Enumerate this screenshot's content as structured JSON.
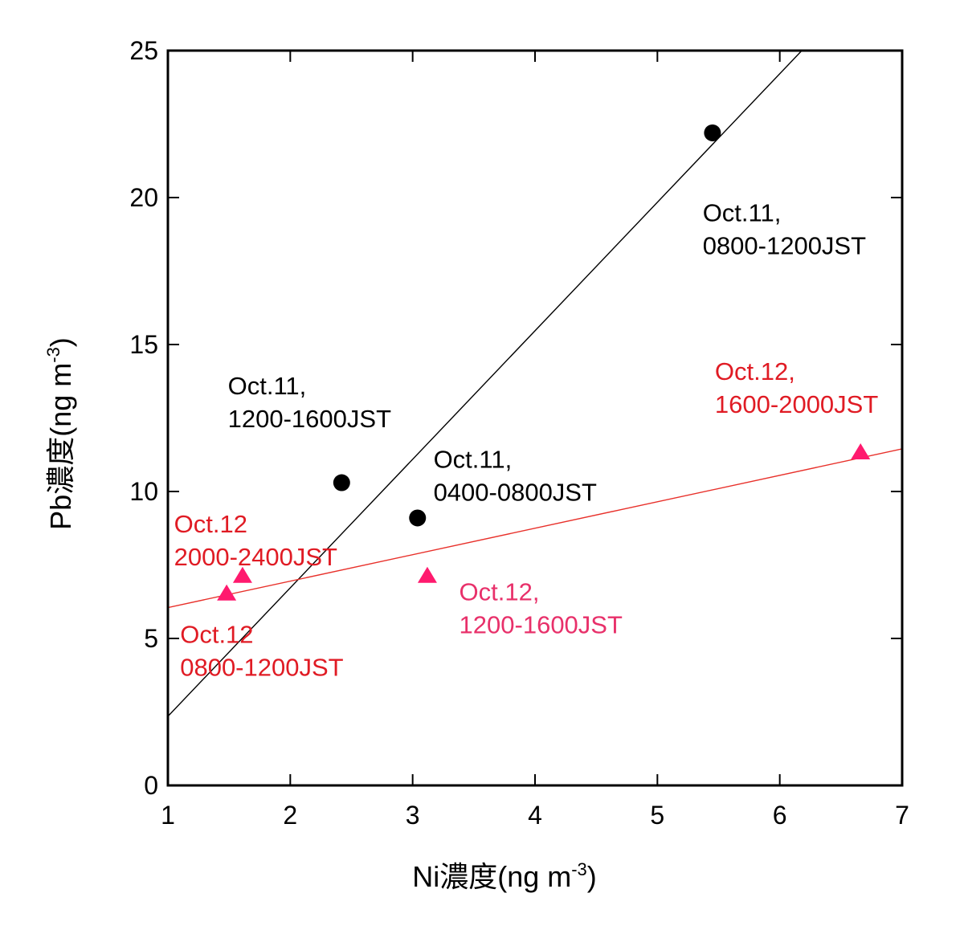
{
  "chart_data": {
    "type": "scatter",
    "title": "",
    "xlabel": "Ni濃度(ng m",
    "xlabel_sup": "-3",
    "xlabel_close": ")",
    "ylabel": "Pb濃度(ng m",
    "ylabel_sup": "-3",
    "ylabel_close": ")",
    "xlim": [
      1,
      7
    ],
    "ylim": [
      0,
      25
    ],
    "xticks": [
      "1",
      "2",
      "3",
      "4",
      "5",
      "6",
      "7"
    ],
    "yticks": [
      "0",
      "5",
      "10",
      "15",
      "20",
      "25"
    ],
    "grid": false,
    "series": [
      {
        "marker": "circle",
        "color": "#000000",
        "points": [
          {
            "x": 2.42,
            "y": 10.3
          },
          {
            "x": 3.04,
            "y": 9.1
          },
          {
            "x": 5.45,
            "y": 22.2
          }
        ],
        "fit_line": {
          "x": [
            1.0,
            6.18
          ],
          "y": [
            2.35,
            25.0
          ],
          "color": "#000000"
        }
      },
      {
        "marker": "triangle",
        "color": "#ff1a6e",
        "points": [
          {
            "x": 1.48,
            "y": 6.5
          },
          {
            "x": 1.61,
            "y": 7.1
          },
          {
            "x": 3.12,
            "y": 7.1
          },
          {
            "x": 6.66,
            "y": 11.3
          }
        ],
        "fit_line": {
          "x": [
            1.0,
            7.0
          ],
          "y": [
            6.05,
            11.45
          ],
          "color": "#e8302a"
        }
      }
    ],
    "annotations": [
      {
        "lines": [
          "Oct.11,",
          "0800-1200JST"
        ],
        "color": "#000000",
        "anchor": {
          "x": 5.37,
          "y": 19.2
        }
      },
      {
        "lines": [
          "Oct.11,",
          "1200-1600JST"
        ],
        "color": "#000000",
        "anchor": {
          "x": 1.49,
          "y": 13.3
        }
      },
      {
        "lines": [
          "Oct.11,",
          "0400-0800JST"
        ],
        "color": "#000000",
        "anchor": {
          "x": 3.17,
          "y": 10.8
        }
      },
      {
        "lines": [
          "Oct.12,",
          "1600-2000JST"
        ],
        "color": "#e01b24",
        "anchor": {
          "x": 5.47,
          "y": 13.8
        }
      },
      {
        "lines": [
          "Oct.12",
          "2000-2400JST"
        ],
        "color": "#e01b24",
        "anchor": {
          "x": 1.05,
          "y": 8.6
        }
      },
      {
        "lines": [
          "Oct.12,",
          "1200-1600JST"
        ],
        "color": "#e8306a",
        "anchor": {
          "x": 3.38,
          "y": 6.3
        }
      },
      {
        "lines": [
          "Oct.12",
          "0800-1200JST"
        ],
        "color": "#e01b24",
        "anchor": {
          "x": 1.1,
          "y": 4.85
        }
      }
    ]
  }
}
